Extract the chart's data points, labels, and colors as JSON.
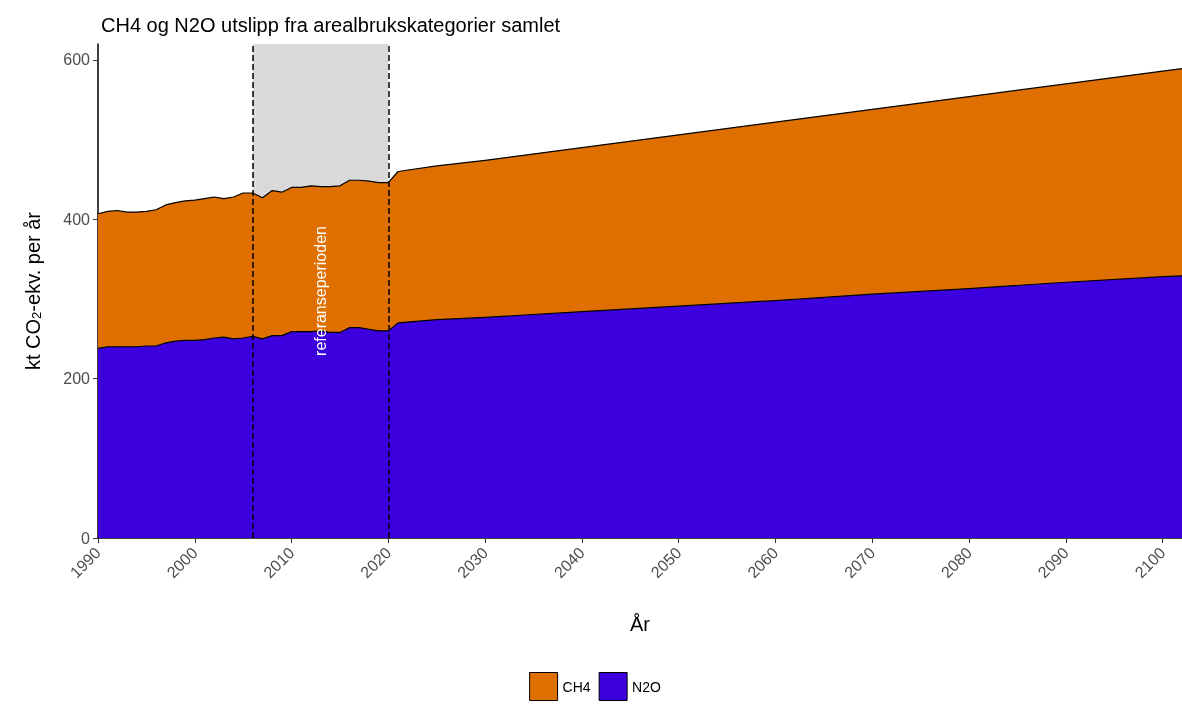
{
  "chart_data": {
    "type": "area",
    "stacked": true,
    "title": "CH4 og N2O utslipp fra arealbrukskategorier samlet",
    "xlabel": "År",
    "ylabel": "kt CO$_{2}$-ekv. per år",
    "x": [
      1990,
      1991,
      1992,
      1993,
      1994,
      1995,
      1996,
      1997,
      1998,
      1999,
      2000,
      2001,
      2002,
      2003,
      2004,
      2005,
      2006,
      2007,
      2008,
      2009,
      2010,
      2011,
      2012,
      2013,
      2014,
      2015,
      2016,
      2017,
      2018,
      2019,
      2020,
      2021,
      2025,
      2030,
      2040,
      2050,
      2060,
      2070,
      2080,
      2090,
      2100,
      2102
    ],
    "series": [
      {
        "name": "N2O",
        "color": "#3b00dd",
        "values": [
          238,
          240,
          240,
          240,
          240,
          241,
          241,
          245,
          247,
          248,
          248,
          249,
          251,
          252,
          250,
          251,
          253,
          250,
          254,
          254,
          259,
          259,
          259,
          260,
          258,
          258,
          264,
          264,
          262,
          260,
          260,
          270,
          274,
          277,
          284,
          291,
          298,
          306,
          313,
          321,
          328,
          329
        ]
      },
      {
        "name": "CH4",
        "color": "#df7000",
        "values": [
          169,
          170,
          171,
          169,
          169,
          169,
          171,
          173,
          174,
          175,
          176,
          177,
          177,
          174,
          178,
          182,
          180,
          177,
          182,
          180,
          181,
          181,
          183,
          181,
          183,
          184,
          185,
          185,
          186,
          186,
          186,
          190,
          193,
          197,
          206,
          215,
          224,
          232,
          241,
          249,
          258,
          260
        ]
      }
    ],
    "xlim": [
      1990,
      2102
    ],
    "xticks": [
      1990,
      2000,
      2010,
      2020,
      2030,
      2040,
      2050,
      2060,
      2070,
      2080,
      2090,
      2100
    ],
    "ylim": [
      0,
      620
    ],
    "yticks": [
      0,
      200,
      400,
      600
    ],
    "grid": false,
    "legend": "bottom",
    "bands": [
      {
        "axis": "x",
        "from": 2006,
        "to": 2020,
        "label": "referanseperioden",
        "color": "#000000"
      }
    ],
    "ref_lines": [
      {
        "axis": "x",
        "value": 2006,
        "line_style": "dashed"
      },
      {
        "axis": "x",
        "value": 2020,
        "line_style": "dashed"
      }
    ]
  }
}
